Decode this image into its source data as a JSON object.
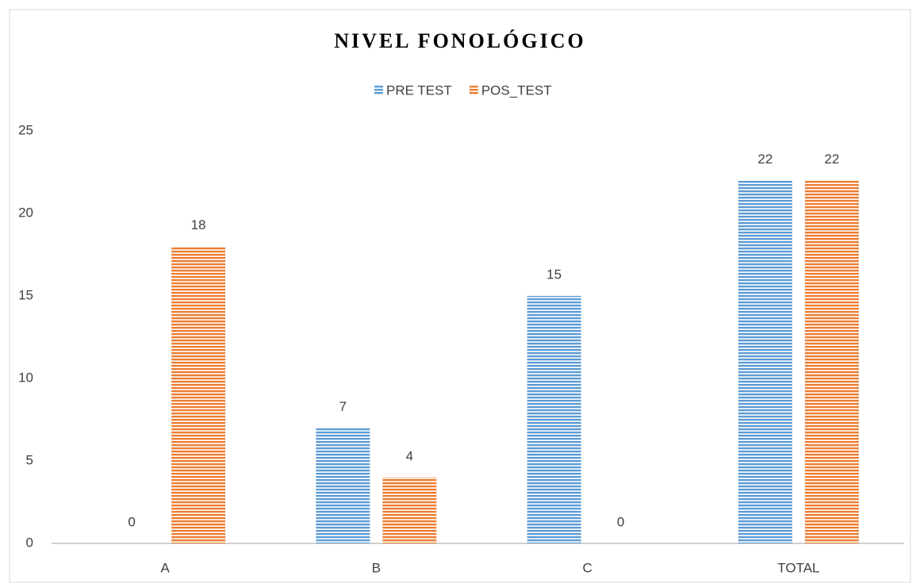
{
  "chart_data": {
    "type": "bar",
    "title": "NIVEL FONOLÓGICO",
    "categories": [
      "A",
      "B",
      "C",
      "TOTAL"
    ],
    "series": [
      {
        "name": "PRE TEST",
        "color": "#5b9bd5",
        "values": [
          0,
          7,
          15,
          22
        ]
      },
      {
        "name": "POS_TEST",
        "color": "#ed7d31",
        "values": [
          18,
          4,
          0,
          22
        ]
      }
    ],
    "ylim": [
      0,
      25
    ],
    "yticks": [
      0,
      5,
      10,
      15,
      20,
      25
    ],
    "grid": false,
    "legend": "top"
  }
}
